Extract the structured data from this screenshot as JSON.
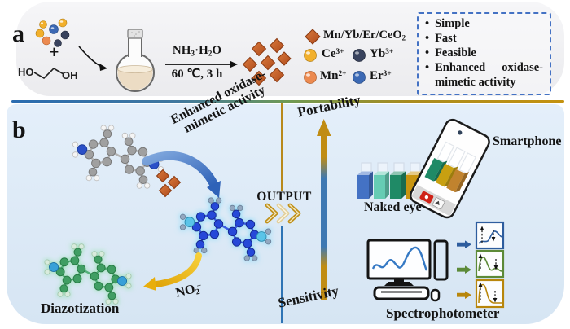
{
  "panel_a": {
    "label": "a",
    "plus": "+",
    "glycol_left": "HO",
    "glycol_right": "OH",
    "reagent": {
      "p1": "NH",
      "s1": "3",
      "p2": "·H",
      "s2": "2",
      "p3": "O"
    },
    "conditions": "60 ℃, 3 h",
    "product_name": {
      "base": "Mn/Yb/Er/CeO",
      "sub": "2"
    },
    "product_color": "#c2582a",
    "ions": [
      {
        "symbol": "Ce",
        "charge": "3+",
        "color": "#f2b02c"
      },
      {
        "symbol": "Yb",
        "charge": "3+",
        "color": "#39435e"
      },
      {
        "symbol": "Mn",
        "charge": "2+",
        "color": "#ec8a50"
      },
      {
        "symbol": "Er",
        "charge": "3+",
        "color": "#3c69b4"
      }
    ],
    "features": [
      "Simple",
      "Fast",
      "Feasible",
      "Enhanced oxidase-mimetic activity"
    ]
  },
  "panel_b": {
    "label": "b",
    "activity_line1": "Enhanced oxidase-",
    "activity_line2": "mimetic activity",
    "no2": {
      "base": "NO",
      "sub": "2",
      "sup": "−"
    },
    "diazotization": "Diazotization",
    "output": "OUTPUT",
    "axis_top": "Portability",
    "axis_bottom": "Sensitivity",
    "naked_eye": "Naked eye",
    "smartphone": "Smartphone",
    "spectrophotometer": "Spectrophotometer",
    "cuvette_colors": [
      "#4472c4",
      "#66ccb4",
      "#1f8a66",
      "#c89511",
      "#c1832e"
    ],
    "phone_cuvette_colors": [
      "#1f8a66",
      "#c8a011",
      "#c1832e"
    ],
    "spectra_colors": [
      "#2e5d9e",
      "#5c8a38",
      "#b8860b"
    ]
  }
}
